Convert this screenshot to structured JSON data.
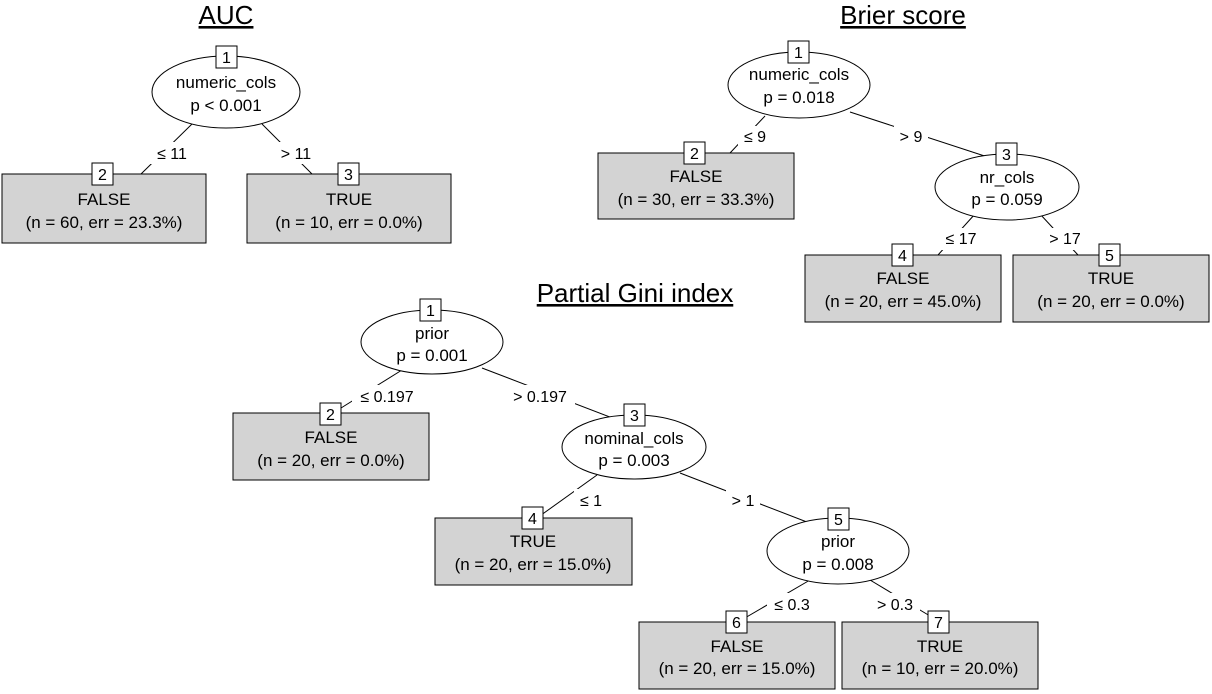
{
  "trees": [
    {
      "title": "AUC",
      "inner": [
        {
          "id": "1",
          "variable": "numeric_cols",
          "p": "p < 0.001"
        }
      ],
      "leaves": [
        {
          "id": "2",
          "label": "FALSE",
          "stats": "(n = 60, err = 23.3%)"
        },
        {
          "id": "3",
          "label": "TRUE",
          "stats": "(n = 10, err = 0.0%)"
        }
      ],
      "edges": [
        {
          "label": "≤ 11"
        },
        {
          "label": "> 11"
        }
      ]
    },
    {
      "title": "Brier score",
      "inner": [
        {
          "id": "1",
          "variable": "numeric_cols",
          "p": "p = 0.018"
        },
        {
          "id": "3",
          "variable": "nr_cols",
          "p": "p = 0.059"
        }
      ],
      "leaves": [
        {
          "id": "2",
          "label": "FALSE",
          "stats": "(n = 30, err = 33.3%)"
        },
        {
          "id": "4",
          "label": "FALSE",
          "stats": "(n = 20, err = 45.0%)"
        },
        {
          "id": "5",
          "label": "TRUE",
          "stats": "(n = 20, err = 0.0%)"
        }
      ],
      "edges": [
        {
          "label": "≤ 9"
        },
        {
          "label": "> 9"
        },
        {
          "label": "≤ 17"
        },
        {
          "label": "> 17"
        }
      ]
    },
    {
      "title": "Partial Gini index",
      "inner": [
        {
          "id": "1",
          "variable": "prior",
          "p": "p = 0.001"
        },
        {
          "id": "3",
          "variable": "nominal_cols",
          "p": "p = 0.003"
        },
        {
          "id": "5",
          "variable": "prior",
          "p": "p = 0.008"
        }
      ],
      "leaves": [
        {
          "id": "2",
          "label": "FALSE",
          "stats": "(n = 20, err = 0.0%)"
        },
        {
          "id": "4",
          "label": "TRUE",
          "stats": "(n = 20, err = 15.0%)"
        },
        {
          "id": "6",
          "label": "FALSE",
          "stats": "(n = 20, err = 15.0%)"
        },
        {
          "id": "7",
          "label": "TRUE",
          "stats": "(n = 10, err = 20.0%)"
        }
      ],
      "edges": [
        {
          "label": "≤ 0.197"
        },
        {
          "label": "> 0.197"
        },
        {
          "label": "≤ 1"
        },
        {
          "label": "> 1"
        },
        {
          "label": "≤ 0.3"
        },
        {
          "label": "> 0.3"
        }
      ]
    }
  ]
}
